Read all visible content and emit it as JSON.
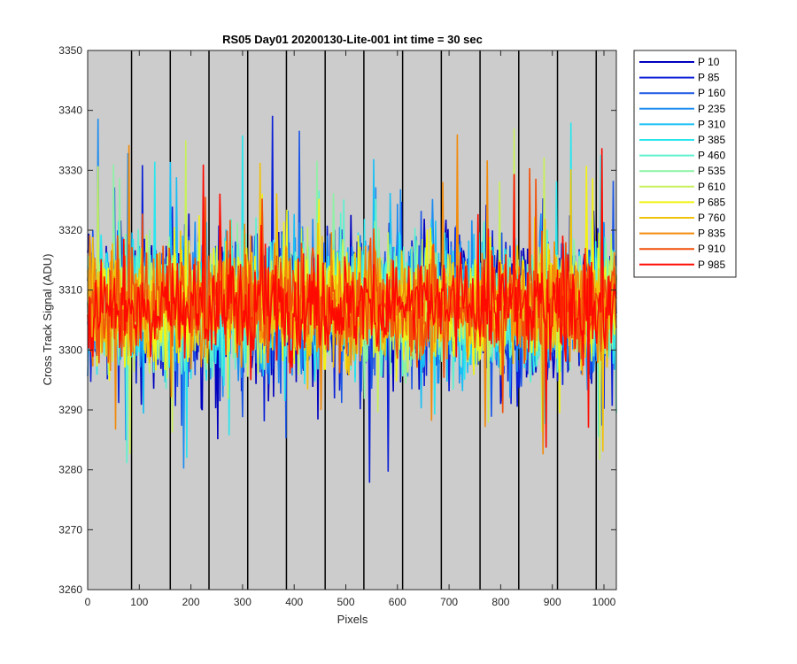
{
  "chart_data": {
    "type": "line",
    "title": "RS05 Day01 20200130-Lite-001 int time = 30 sec",
    "xlabel": "Pixels",
    "ylabel": "Cross Track Signal (ADU)",
    "xlim": [
      0,
      1024
    ],
    "ylim": [
      3260,
      3350
    ],
    "xticks": [
      0,
      100,
      200,
      300,
      400,
      500,
      600,
      700,
      800,
      900,
      1000
    ],
    "yticks": [
      3260,
      3270,
      3280,
      3290,
      3300,
      3310,
      3320,
      3330,
      3340,
      3350
    ],
    "background": "#cccccc",
    "legend_position": "outside-top-right",
    "vertical_lines_x": [
      85,
      160,
      235,
      310,
      385,
      460,
      535,
      610,
      685,
      760,
      835,
      910,
      985
    ],
    "noise": {
      "mean": 3307.5,
      "min": 3268,
      "max": 3344
    },
    "series": [
      {
        "name": "P 10",
        "color": "#0000bf"
      },
      {
        "name": "P 85",
        "color": "#0a1fd6"
      },
      {
        "name": "P 160",
        "color": "#1a56e6"
      },
      {
        "name": "P 235",
        "color": "#1a8cf2"
      },
      {
        "name": "P 310",
        "color": "#19bff5"
      },
      {
        "name": "P 385",
        "color": "#29e6ee"
      },
      {
        "name": "P 460",
        "color": "#5cf2cf"
      },
      {
        "name": "P 535",
        "color": "#8cf2a3"
      },
      {
        "name": "P 610",
        "color": "#c8f05a"
      },
      {
        "name": "P 685",
        "color": "#f2f213"
      },
      {
        "name": "P 760",
        "color": "#f2c20a"
      },
      {
        "name": "P 835",
        "color": "#f28a0a"
      },
      {
        "name": "P 910",
        "color": "#f24f08"
      },
      {
        "name": "P 985",
        "color": "#ff0a00"
      }
    ]
  }
}
